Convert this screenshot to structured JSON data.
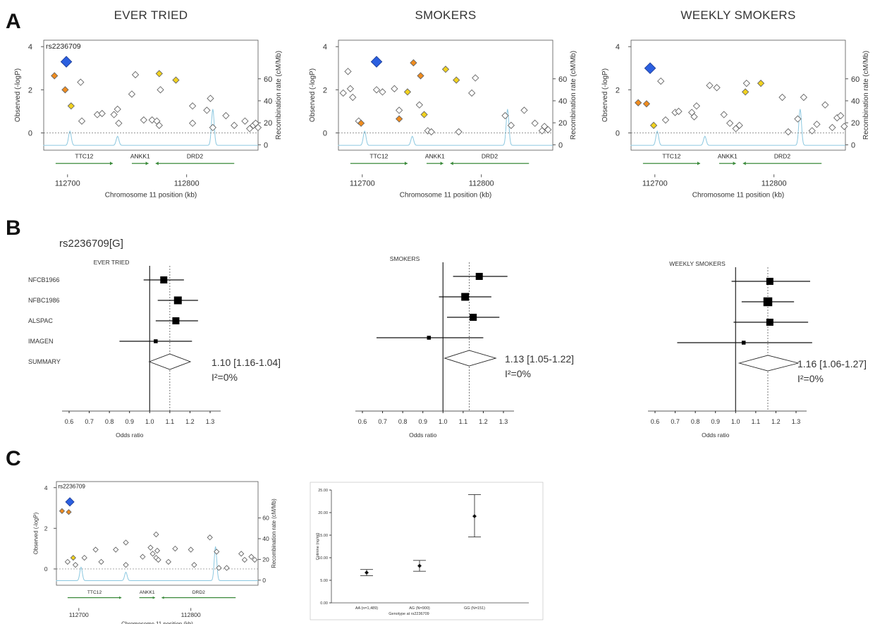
{
  "panels": {
    "a": {
      "letter": "A",
      "ylabel_left": "Observed (-logP)",
      "ylabel_right": "Recombination rate (cM/Mb)",
      "xlabel": "Chromosome 11 position (kb)",
      "y_ticks": [
        "0",
        "2",
        "4"
      ],
      "right_ticks": [
        "0",
        "20",
        "40",
        "60"
      ],
      "x_ticks": [
        "112700",
        "112800"
      ],
      "genes": [
        "TTC12",
        "ANKK1",
        "DRD2"
      ]
    },
    "b": {
      "letter": "B",
      "snp_title": "rs2236709[G]",
      "xlabel": "Odds ratio",
      "cohorts": [
        "NFCB1966",
        "NFBC1986",
        "ALSPAC",
        "IMAGEN",
        "SUMMARY"
      ],
      "x_ticks": [
        "0.6",
        "0.7",
        "0.8",
        "0.9",
        "1.0",
        "1.1",
        "1.2",
        "1.3"
      ]
    },
    "c": {
      "letter": "C",
      "cotinine_ylabel": "Cotinine (ng/ml)",
      "cotinine_xlabel": "Genotype at rs2236709",
      "cotinine_y_ticks": [
        "0.00",
        "5.00",
        "10.00",
        "15.00",
        "20.00",
        "25.00"
      ]
    }
  },
  "chart_data": [
    {
      "type": "scatter",
      "panel": "A",
      "title": "EVER TRIED",
      "xlabel": "Chromosome 11 position (kb)",
      "ylabel": "Observed (-logP)",
      "ylim": [
        -0.8,
        4.3
      ],
      "xlim": [
        112680,
        112860
      ],
      "lead_snp": "rs2236709",
      "lead": {
        "x": 112699,
        "y": 3.3
      },
      "points": [
        {
          "x": 112689,
          "y": 2.65,
          "c": "#f08c1e"
        },
        {
          "x": 112698,
          "y": 2.0,
          "c": "#f08c1e"
        },
        {
          "x": 112703,
          "y": 1.25,
          "c": "#f2d21e"
        },
        {
          "x": 112711,
          "y": 2.35,
          "c": "#fff"
        },
        {
          "x": 112712,
          "y": 0.55,
          "c": "#fff"
        },
        {
          "x": 112725,
          "y": 0.85,
          "c": "#fff"
        },
        {
          "x": 112729,
          "y": 0.9,
          "c": "#fff"
        },
        {
          "x": 112739,
          "y": 0.85,
          "c": "#fff"
        },
        {
          "x": 112742,
          "y": 1.1,
          "c": "#fff"
        },
        {
          "x": 112743,
          "y": 0.45,
          "c": "#fff"
        },
        {
          "x": 112754,
          "y": 1.8,
          "c": "#fff"
        },
        {
          "x": 112757,
          "y": 2.7,
          "c": "#fff"
        },
        {
          "x": 112764,
          "y": 0.6,
          "c": "#fff"
        },
        {
          "x": 112771,
          "y": 0.6,
          "c": "#fff"
        },
        {
          "x": 112775,
          "y": 0.55,
          "c": "#fff"
        },
        {
          "x": 112777,
          "y": 0.35,
          "c": "#fff"
        },
        {
          "x": 112777,
          "y": 2.75,
          "c": "#f2d21e"
        },
        {
          "x": 112778,
          "y": 2.0,
          "c": "#fff"
        },
        {
          "x": 112791,
          "y": 2.45,
          "c": "#f2d21e"
        },
        {
          "x": 112805,
          "y": 0.45,
          "c": "#fff"
        },
        {
          "x": 112805,
          "y": 1.25,
          "c": "#fff"
        },
        {
          "x": 112817,
          "y": 1.05,
          "c": "#fff"
        },
        {
          "x": 112820,
          "y": 1.6,
          "c": "#fff"
        },
        {
          "x": 112822,
          "y": 0.25,
          "c": "#fff"
        },
        {
          "x": 112833,
          "y": 0.8,
          "c": "#fff"
        },
        {
          "x": 112840,
          "y": 0.35,
          "c": "#fff"
        },
        {
          "x": 112849,
          "y": 0.55,
          "c": "#fff"
        },
        {
          "x": 112853,
          "y": 0.2,
          "c": "#fff"
        },
        {
          "x": 112856,
          "y": 0.35,
          "c": "#fff"
        },
        {
          "x": 112860,
          "y": 0.25,
          "c": "#fff"
        },
        {
          "x": 112858,
          "y": 0.45,
          "c": "#fff"
        }
      ]
    },
    {
      "type": "scatter",
      "panel": "A",
      "title": "SMOKERS",
      "xlabel": "Chromosome 11 position (kb)",
      "ylabel": "Observed (-logP)",
      "ylim": [
        -0.8,
        4.3
      ],
      "xlim": [
        112680,
        112860
      ],
      "lead": {
        "x": 112712,
        "y": 3.3
      },
      "points": [
        {
          "x": 112684,
          "y": 1.85,
          "c": "#fff"
        },
        {
          "x": 112688,
          "y": 2.85,
          "c": "#fff"
        },
        {
          "x": 112690,
          "y": 2.05,
          "c": "#fff"
        },
        {
          "x": 112692,
          "y": 1.65,
          "c": "#fff"
        },
        {
          "x": 112697,
          "y": 0.55,
          "c": "#fff"
        },
        {
          "x": 112699,
          "y": 0.45,
          "c": "#f08c1e"
        },
        {
          "x": 112712,
          "y": 2.0,
          "c": "#fff"
        },
        {
          "x": 112717,
          "y": 1.9,
          "c": "#fff"
        },
        {
          "x": 112727,
          "y": 2.05,
          "c": "#fff"
        },
        {
          "x": 112731,
          "y": 0.65,
          "c": "#f08c1e"
        },
        {
          "x": 112731,
          "y": 1.05,
          "c": "#fff"
        },
        {
          "x": 112738,
          "y": 1.9,
          "c": "#f2d21e"
        },
        {
          "x": 112743,
          "y": 3.25,
          "c": "#f08c1e"
        },
        {
          "x": 112748,
          "y": 1.3,
          "c": "#fff"
        },
        {
          "x": 112749,
          "y": 2.65,
          "c": "#f08c1e"
        },
        {
          "x": 112752,
          "y": 0.85,
          "c": "#f2d21e"
        },
        {
          "x": 112755,
          "y": 0.1,
          "c": "#fff"
        },
        {
          "x": 112758,
          "y": 0.05,
          "c": "#fff"
        },
        {
          "x": 112770,
          "y": 2.95,
          "c": "#f2d21e"
        },
        {
          "x": 112779,
          "y": 2.45,
          "c": "#f2d21e"
        },
        {
          "x": 112792,
          "y": 1.85,
          "c": "#fff"
        },
        {
          "x": 112795,
          "y": 2.55,
          "c": "#fff"
        },
        {
          "x": 112781,
          "y": 0.05,
          "c": "#fff"
        },
        {
          "x": 112820,
          "y": 0.8,
          "c": "#fff"
        },
        {
          "x": 112825,
          "y": 0.35,
          "c": "#fff"
        },
        {
          "x": 112836,
          "y": 1.05,
          "c": "#fff"
        },
        {
          "x": 112845,
          "y": 0.45,
          "c": "#fff"
        },
        {
          "x": 112851,
          "y": 0.1,
          "c": "#fff"
        },
        {
          "x": 112853,
          "y": 0.3,
          "c": "#fff"
        },
        {
          "x": 112856,
          "y": 0.15,
          "c": "#fff"
        }
      ]
    },
    {
      "type": "scatter",
      "panel": "A",
      "title": "WEEKLY SMOKERS",
      "xlabel": "Chromosome 11 position (kb)",
      "ylabel": "Observed (-logP)",
      "ylim": [
        -0.8,
        4.3
      ],
      "xlim": [
        112680,
        112860
      ],
      "lead": {
        "x": 112696,
        "y": 3.0
      },
      "points": [
        {
          "x": 112686,
          "y": 1.4,
          "c": "#f08c1e"
        },
        {
          "x": 112693,
          "y": 1.35,
          "c": "#f08c1e"
        },
        {
          "x": 112699,
          "y": 0.35,
          "c": "#f2d21e"
        },
        {
          "x": 112705,
          "y": 2.4,
          "c": "#fff"
        },
        {
          "x": 112709,
          "y": 0.6,
          "c": "#fff"
        },
        {
          "x": 112717,
          "y": 0.95,
          "c": "#fff"
        },
        {
          "x": 112720,
          "y": 1.0,
          "c": "#fff"
        },
        {
          "x": 112731,
          "y": 0.95,
          "c": "#fff"
        },
        {
          "x": 112733,
          "y": 0.75,
          "c": "#fff"
        },
        {
          "x": 112735,
          "y": 1.25,
          "c": "#fff"
        },
        {
          "x": 112746,
          "y": 2.2,
          "c": "#fff"
        },
        {
          "x": 112752,
          "y": 2.1,
          "c": "#fff"
        },
        {
          "x": 112758,
          "y": 0.85,
          "c": "#fff"
        },
        {
          "x": 112763,
          "y": 0.45,
          "c": "#fff"
        },
        {
          "x": 112768,
          "y": 0.2,
          "c": "#fff"
        },
        {
          "x": 112771,
          "y": 0.35,
          "c": "#fff"
        },
        {
          "x": 112776,
          "y": 1.9,
          "c": "#f2d21e"
        },
        {
          "x": 112777,
          "y": 2.3,
          "c": "#fff"
        },
        {
          "x": 112789,
          "y": 2.3,
          "c": "#f2d21e"
        },
        {
          "x": 112807,
          "y": 1.65,
          "c": "#fff"
        },
        {
          "x": 112812,
          "y": 0.05,
          "c": "#fff"
        },
        {
          "x": 112820,
          "y": 0.65,
          "c": "#fff"
        },
        {
          "x": 112825,
          "y": 1.65,
          "c": "#fff"
        },
        {
          "x": 112832,
          "y": 0.1,
          "c": "#fff"
        },
        {
          "x": 112836,
          "y": 0.4,
          "c": "#fff"
        },
        {
          "x": 112843,
          "y": 1.3,
          "c": "#fff"
        },
        {
          "x": 112849,
          "y": 0.25,
          "c": "#fff"
        },
        {
          "x": 112853,
          "y": 0.7,
          "c": "#fff"
        },
        {
          "x": 112856,
          "y": 0.8,
          "c": "#fff"
        },
        {
          "x": 112859,
          "y": 0.3,
          "c": "#fff"
        }
      ]
    },
    {
      "type": "forest",
      "panel": "B",
      "title": "EVER TRIED",
      "xlabel": "Odds ratio",
      "xlim": [
        0.6,
        1.3
      ],
      "rows": [
        {
          "label": "NFCB1966",
          "est": 1.07,
          "lo": 0.97,
          "hi": 1.17,
          "w": 1.0
        },
        {
          "label": "NFBC1986",
          "est": 1.14,
          "lo": 1.04,
          "hi": 1.24,
          "w": 1.1
        },
        {
          "label": "ALSPAC",
          "est": 1.13,
          "lo": 1.03,
          "hi": 1.24,
          "w": 1.0
        },
        {
          "label": "IMAGEN",
          "est": 1.03,
          "lo": 0.85,
          "hi": 1.21,
          "w": 0.55
        }
      ],
      "summary": {
        "est": 1.1,
        "lo": 1.04,
        "hi": 1.16,
        "text": "1.10 [1.16-1.04]",
        "i2": "I²=0%"
      }
    },
    {
      "type": "forest",
      "panel": "B",
      "title": "SMOKERS",
      "xlabel": "Odds ratio",
      "xlim": [
        0.6,
        1.3
      ],
      "rows": [
        {
          "label": "NFCB1966",
          "est": 1.18,
          "lo": 1.05,
          "hi": 1.32,
          "w": 1.0
        },
        {
          "label": "NFBC1986",
          "est": 1.11,
          "lo": 0.98,
          "hi": 1.24,
          "w": 1.1
        },
        {
          "label": "ALSPAC",
          "est": 1.15,
          "lo": 1.02,
          "hi": 1.28,
          "w": 1.0
        },
        {
          "label": "IMAGEN",
          "est": 0.93,
          "lo": 0.67,
          "hi": 1.2,
          "w": 0.55
        }
      ],
      "summary": {
        "est": 1.13,
        "lo": 1.05,
        "hi": 1.22,
        "text": "1.13 [1.05-1.22]",
        "i2": "I²=0%"
      }
    },
    {
      "type": "forest",
      "panel": "B",
      "title": "WEEKLY SMOKERS",
      "xlabel": "Odds ratio",
      "xlim": [
        0.6,
        1.3
      ],
      "rows": [
        {
          "label": "NFCB1966",
          "est": 1.17,
          "lo": 0.98,
          "hi": 1.37,
          "w": 1.0
        },
        {
          "label": "NFBC1986",
          "est": 1.16,
          "lo": 1.03,
          "hi": 1.29,
          "w": 1.25
        },
        {
          "label": "ALSPAC",
          "est": 1.17,
          "lo": 0.99,
          "hi": 1.36,
          "w": 1.0
        },
        {
          "label": "IMAGEN",
          "est": 1.04,
          "lo": 0.71,
          "hi": 1.38,
          "w": 0.55
        }
      ],
      "summary": {
        "est": 1.16,
        "lo": 1.06,
        "hi": 1.27,
        "text": "1.16 [1.06-1.27]",
        "i2": "I²=0%"
      }
    },
    {
      "type": "scatter",
      "panel": "C",
      "xlabel": "Chromosome 11 position (kb)",
      "ylabel": "Observed (-logP)",
      "ylim": [
        -0.8,
        4.3
      ],
      "xlim": [
        112680,
        112860
      ],
      "lead_snp": "rs2236709",
      "lead": {
        "x": 112692,
        "y": 3.3
      },
      "points": [
        {
          "x": 112685,
          "y": 2.85,
          "c": "#f08c1e"
        },
        {
          "x": 112691,
          "y": 2.8,
          "c": "#f08c1e"
        },
        {
          "x": 112695,
          "y": 0.55,
          "c": "#f2d21e"
        },
        {
          "x": 112690,
          "y": 0.35,
          "c": "#fff"
        },
        {
          "x": 112697,
          "y": 0.2,
          "c": "#fff"
        },
        {
          "x": 112705,
          "y": 0.55,
          "c": "#fff"
        },
        {
          "x": 112715,
          "y": 0.95,
          "c": "#fff"
        },
        {
          "x": 112720,
          "y": 0.35,
          "c": "#fff"
        },
        {
          "x": 112733,
          "y": 0.95,
          "c": "#fff"
        },
        {
          "x": 112742,
          "y": 0.2,
          "c": "#fff"
        },
        {
          "x": 112742,
          "y": 1.3,
          "c": "#fff"
        },
        {
          "x": 112757,
          "y": 0.6,
          "c": "#fff"
        },
        {
          "x": 112764,
          "y": 1.05,
          "c": "#fff"
        },
        {
          "x": 112766,
          "y": 0.75,
          "c": "#fff"
        },
        {
          "x": 112769,
          "y": 0.55,
          "c": "#fff"
        },
        {
          "x": 112769,
          "y": 1.7,
          "c": "#fff"
        },
        {
          "x": 112770,
          "y": 0.9,
          "c": "#fff"
        },
        {
          "x": 112771,
          "y": 0.45,
          "c": "#fff"
        },
        {
          "x": 112780,
          "y": 0.35,
          "c": "#fff"
        },
        {
          "x": 112786,
          "y": 1.0,
          "c": "#fff"
        },
        {
          "x": 112800,
          "y": 0.95,
          "c": "#fff"
        },
        {
          "x": 112803,
          "y": 0.2,
          "c": "#fff"
        },
        {
          "x": 112817,
          "y": 1.55,
          "c": "#fff"
        },
        {
          "x": 112823,
          "y": 0.85,
          "c": "#fff"
        },
        {
          "x": 112825,
          "y": 0.05,
          "c": "#fff"
        },
        {
          "x": 112832,
          "y": 0.05,
          "c": "#fff"
        },
        {
          "x": 112845,
          "y": 0.75,
          "c": "#fff"
        },
        {
          "x": 112848,
          "y": 0.45,
          "c": "#fff"
        },
        {
          "x": 112854,
          "y": 0.6,
          "c": "#fff"
        },
        {
          "x": 112857,
          "y": 0.45,
          "c": "#fff"
        }
      ]
    },
    {
      "type": "errorbar",
      "panel": "C",
      "xlabel": "Genotype at rs2236709",
      "ylabel": "Cotinine (ng/ml)",
      "ylim": [
        0,
        25
      ],
      "categories": [
        "AA (n=1,489)",
        "AG (N=900)",
        "GG (N=151)"
      ],
      "values": [
        6.7,
        8.2,
        19.2
      ],
      "lower": [
        6.0,
        7.0,
        14.6
      ],
      "upper": [
        7.4,
        9.4,
        24.0
      ]
    }
  ]
}
